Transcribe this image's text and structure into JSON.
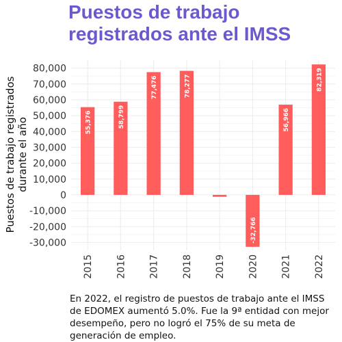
{
  "header": {
    "title_line1": "Puestos de trabajo",
    "title_line2": "registrados ante el IMSS"
  },
  "caption": "En 2022, el registro de puestos de trabajo ante el IMSS de EDOMEX aumentó 5.0%. Fue la 9ª entidad con mejor desempeño, pero no logró el 75% de su meta de generación de empleo.",
  "colors": {
    "title": "#6a5acd",
    "bar": "#ff5c5c",
    "grid": "#ebebeb",
    "axis_text": "#333333"
  },
  "chart_data": {
    "type": "bar",
    "categories": [
      "2015",
      "2016",
      "2017",
      "2018",
      "2019",
      "2020",
      "2021",
      "2022"
    ],
    "values": [
      55376,
      58799,
      77476,
      78277,
      -1200,
      -32766,
      56966,
      82319
    ],
    "data_labels": [
      "55,376",
      "58,799",
      "77,476",
      "78,277",
      "",
      "-32,766",
      "56,966",
      "82,319"
    ],
    "ylabel_line1": "Puestos de trabajo registrados",
    "ylabel_line2": "durante el año",
    "xlabel": "",
    "ylim": [
      -35000,
      85000
    ],
    "yticks": [
      -30000,
      -20000,
      -10000,
      0,
      10000,
      20000,
      30000,
      40000,
      50000,
      60000,
      70000,
      80000
    ],
    "ytick_labels": [
      "-30,000",
      "-20,000",
      "-10,000",
      "0",
      "10,000",
      "20,000",
      "30,000",
      "40,000",
      "50,000",
      "60,000",
      "70,000",
      "80,000"
    ],
    "grid": true,
    "legend": "none"
  }
}
